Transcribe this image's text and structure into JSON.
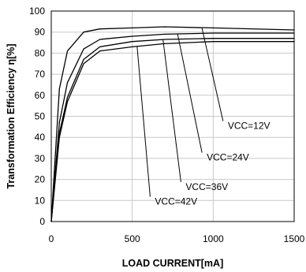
{
  "chart_data": {
    "type": "line",
    "xlabel": "LOAD CURRENT[mA]",
    "ylabel": "Transformation Efficiency  η[%]",
    "xlim": [
      0,
      1500
    ],
    "ylim": [
      0,
      100
    ],
    "xticks": [
      0,
      500,
      1000,
      1500
    ],
    "yticks": [
      0,
      10,
      20,
      30,
      40,
      50,
      60,
      70,
      80,
      90,
      100
    ],
    "grid": true,
    "series": [
      {
        "name": "VCC=12V",
        "x": [
          0,
          50,
          100,
          200,
          300,
          500,
          700,
          1000,
          1500
        ],
        "y": [
          0,
          63,
          81,
          90,
          91.5,
          92,
          92.5,
          92,
          91
        ]
      },
      {
        "name": "VCC=24V",
        "x": [
          0,
          50,
          100,
          200,
          300,
          500,
          700,
          1000,
          1500
        ],
        "y": [
          0,
          47,
          66,
          82,
          86.5,
          88,
          89,
          89.5,
          89.5
        ]
      },
      {
        "name": "VCC=36V",
        "x": [
          0,
          50,
          100,
          200,
          300,
          500,
          700,
          1000,
          1500
        ],
        "y": [
          0,
          42,
          59,
          77,
          83,
          85.5,
          86.5,
          87,
          87
        ]
      },
      {
        "name": "VCC=42V",
        "x": [
          0,
          50,
          100,
          200,
          300,
          500,
          700,
          1000,
          1500
        ],
        "y": [
          0,
          40,
          57,
          75,
          81,
          83,
          84.5,
          85.5,
          85.5
        ]
      }
    ],
    "annotations": [
      {
        "text": "VCC=12V",
        "series": 0,
        "anchor_x": 930,
        "label_x": 1090,
        "label_y": 44
      },
      {
        "text": "VCC=24V",
        "series": 1,
        "anchor_x": 780,
        "label_x": 960,
        "label_y": 29
      },
      {
        "text": "VCC=36V",
        "series": 2,
        "anchor_x": 690,
        "label_x": 830,
        "label_y": 15
      },
      {
        "text": "VCC=42V",
        "series": 3,
        "anchor_x": 530,
        "label_x": 640,
        "label_y": 8
      }
    ]
  }
}
